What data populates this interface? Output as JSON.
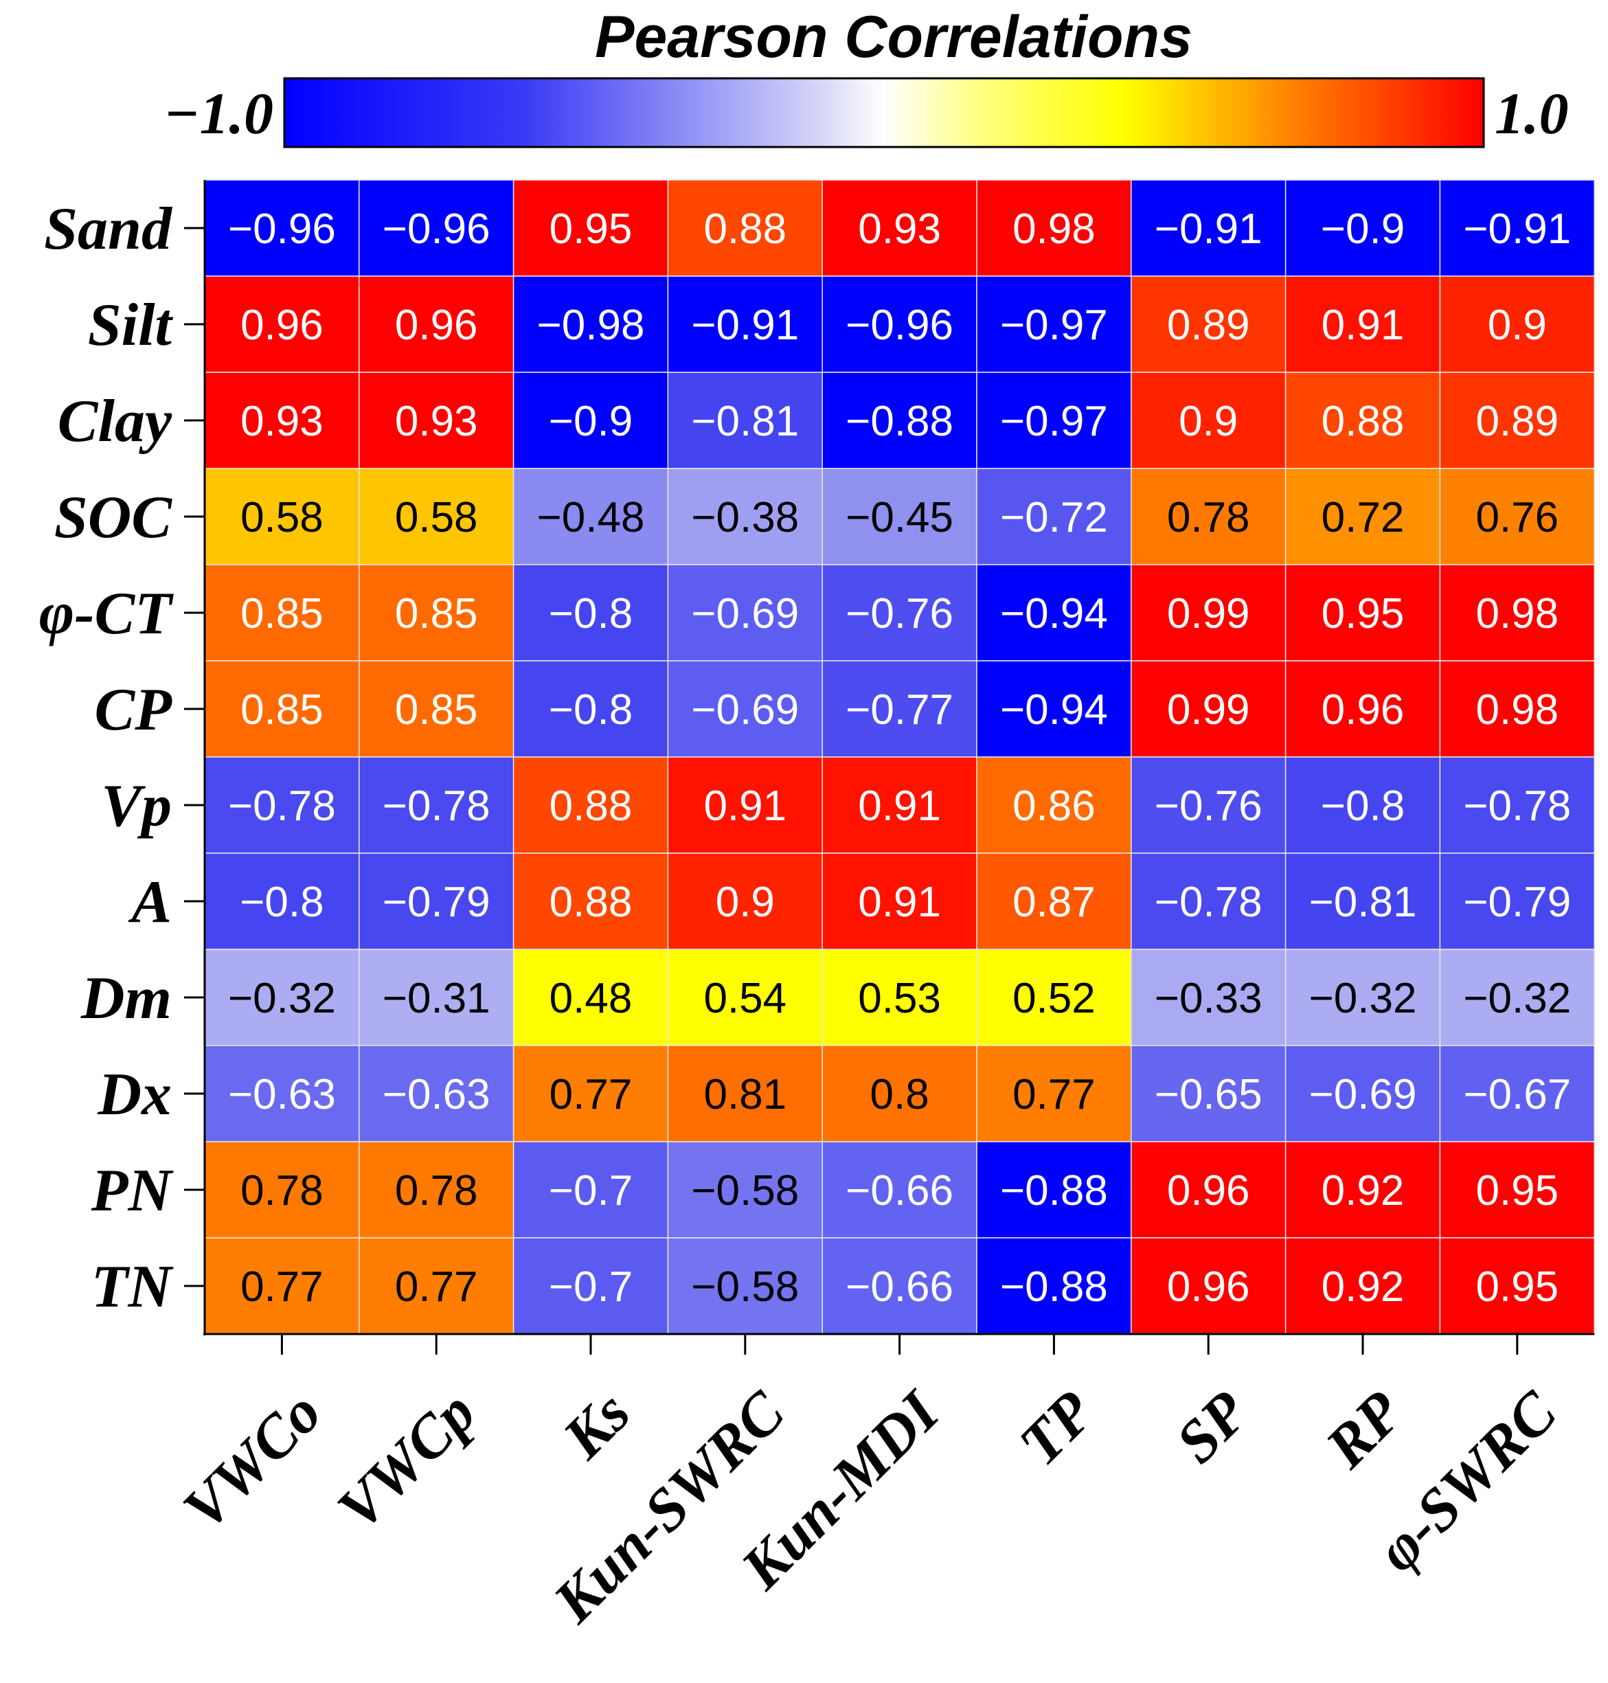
{
  "chart_data": {
    "type": "heatmap",
    "title": "Pearson Correlations",
    "colorbar": {
      "min": -1.0,
      "max": 1.0,
      "min_label": "−1.0",
      "max_label": "1.0"
    },
    "rows": [
      "Sand",
      "Silt",
      "Clay",
      "SOC",
      "φ-CT",
      "CP",
      "Vp",
      "A",
      "Dm",
      "Dx",
      "PN",
      "TN"
    ],
    "columns": [
      "VWCo",
      "VWCp",
      "Ks",
      "Kun-SWRC",
      "Kun-MDI",
      "TP",
      "SP",
      "RP",
      "φ-SWRC"
    ],
    "values": [
      [
        -0.96,
        -0.96,
        0.95,
        0.88,
        0.93,
        0.98,
        -0.91,
        -0.9,
        -0.91
      ],
      [
        0.96,
        0.96,
        -0.98,
        -0.91,
        -0.96,
        -0.97,
        0.89,
        0.91,
        0.9
      ],
      [
        0.93,
        0.93,
        -0.9,
        -0.81,
        -0.88,
        -0.97,
        0.9,
        0.88,
        0.89
      ],
      [
        0.58,
        0.58,
        -0.48,
        -0.38,
        -0.45,
        -0.72,
        0.78,
        0.72,
        0.76
      ],
      [
        0.85,
        0.85,
        -0.8,
        -0.69,
        -0.76,
        -0.94,
        0.99,
        0.95,
        0.98
      ],
      [
        0.85,
        0.85,
        -0.8,
        -0.69,
        -0.77,
        -0.94,
        0.99,
        0.96,
        0.98
      ],
      [
        -0.78,
        -0.78,
        0.88,
        0.91,
        0.91,
        0.86,
        -0.76,
        -0.8,
        -0.78
      ],
      [
        -0.8,
        -0.79,
        0.88,
        0.9,
        0.91,
        0.87,
        -0.78,
        -0.81,
        -0.79
      ],
      [
        -0.32,
        -0.31,
        0.48,
        0.54,
        0.53,
        0.52,
        -0.33,
        -0.32,
        -0.32
      ],
      [
        -0.63,
        -0.63,
        0.77,
        0.81,
        0.8,
        0.77,
        -0.65,
        -0.69,
        -0.67
      ],
      [
        0.78,
        0.78,
        -0.7,
        -0.58,
        -0.66,
        -0.88,
        0.96,
        0.92,
        0.95
      ],
      [
        0.77,
        0.77,
        -0.7,
        -0.58,
        -0.66,
        -0.88,
        0.96,
        0.92,
        0.95
      ]
    ],
    "colors": {
      "neg_strong": "#0000ff",
      "neg_mid": "#3b3bf0",
      "neg_light": "#b0b0f2",
      "neutral": "#ffffff",
      "pos_light": "#ffff00",
      "pos_mid": "#ff6a00",
      "pos_strong": "#ff0000",
      "grid": "#e6e6e6"
    }
  }
}
